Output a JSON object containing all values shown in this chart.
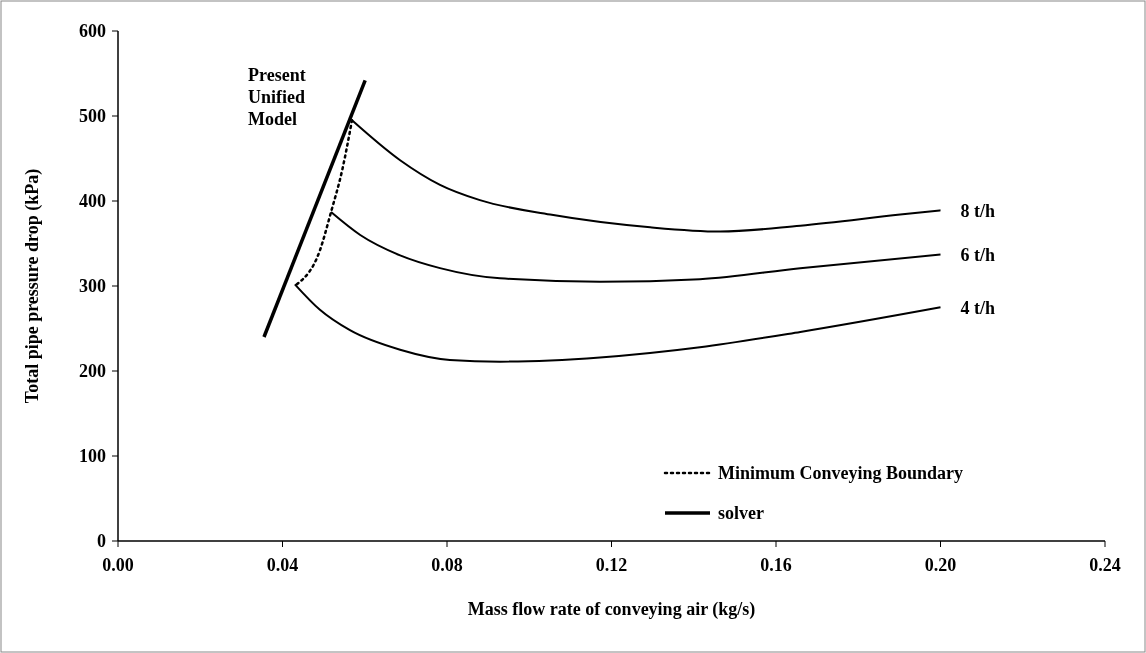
{
  "chart_data": {
    "type": "line",
    "xlabel": "Mass flow rate of conveying air (kg/s)",
    "ylabel": "Total pipe pressure drop (kPa)",
    "xlim": [
      0,
      0.24
    ],
    "xticks": [
      {
        "value": 0,
        "label": "0.00"
      },
      {
        "value": 0.04,
        "label": "0.04"
      },
      {
        "value": 0.08,
        "label": "0.08"
      },
      {
        "value": 0.12,
        "label": "0.12"
      },
      {
        "value": 0.16,
        "label": "0.16"
      },
      {
        "value": 0.2,
        "label": "0.20"
      },
      {
        "value": 0.24,
        "label": "0.24"
      }
    ],
    "ylim": [
      0,
      600
    ],
    "yticks": [
      0,
      100,
      200,
      300,
      400,
      500,
      600
    ],
    "grid": false,
    "legend": "bottom right",
    "marker": "none",
    "annotations": [
      "Present Unified Model"
    ],
    "series": [
      {
        "name": "Minimum Conveying Boundary",
        "color": "#000000",
        "line_style": "dotted",
        "x": [
          0.0435,
          0.0491,
          0.0518,
          0.0545,
          0.0569
        ],
        "values": [
          302,
          342,
          387,
          436,
          495
        ]
      },
      {
        "name": "solver",
        "color": "#000000",
        "line_style": "solid",
        "x": [
          0.0355,
          0.0601
        ],
        "values": [
          240,
          542
        ]
      },
      {
        "name": "8 t/h",
        "color": "#000000",
        "line_style": "solid",
        "x": [
          0.0569,
          0.0686,
          0.0783,
          0.088,
          0.1051,
          0.1294,
          0.1464,
          0.1659,
          0.1902,
          0.2
        ],
        "values": [
          495,
          448,
          419,
          401,
          384,
          369,
          364,
          371,
          384,
          389
        ]
      },
      {
        "name": "6 t/h",
        "color": "#000000",
        "line_style": "solid",
        "x": [
          0.0518,
          0.0589,
          0.0686,
          0.0783,
          0.0929,
          0.1172,
          0.1415,
          0.1659,
          0.2
        ],
        "values": [
          387,
          360,
          336,
          321,
          309,
          305,
          308,
          321,
          337
        ]
      },
      {
        "name": "4 t/h",
        "color": "#000000",
        "line_style": "solid",
        "x": [
          0.043,
          0.0491,
          0.0564,
          0.0686,
          0.0807,
          0.0929,
          0.1172,
          0.1415,
          0.1659,
          0.2
        ],
        "values": [
          302,
          272,
          248,
          225,
          213,
          211,
          216,
          228,
          246,
          275
        ]
      }
    ]
  }
}
